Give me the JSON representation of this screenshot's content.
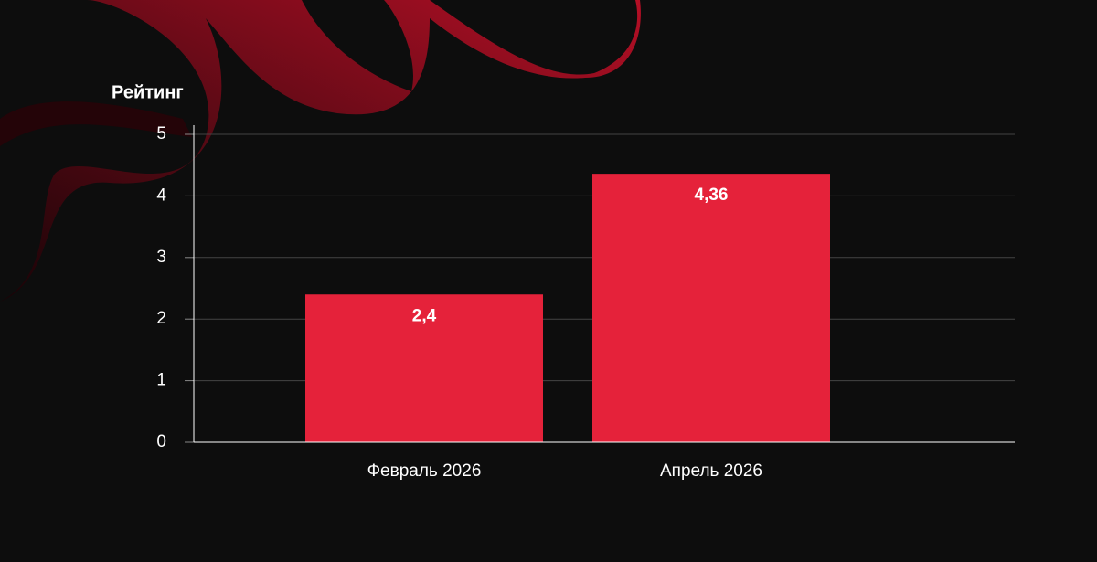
{
  "chart_data": {
    "type": "bar",
    "y_label": "Рейтинг",
    "categories": [
      "Февраль 2026",
      "Апрель 2026"
    ],
    "values": [
      2.4,
      4.36
    ],
    "value_labels": [
      "2,4",
      "4,36"
    ],
    "color": "#e5223a",
    "ylim": [
      0,
      5
    ],
    "yticks": [
      0,
      1,
      2,
      3,
      4,
      5
    ],
    "grid": true
  }
}
